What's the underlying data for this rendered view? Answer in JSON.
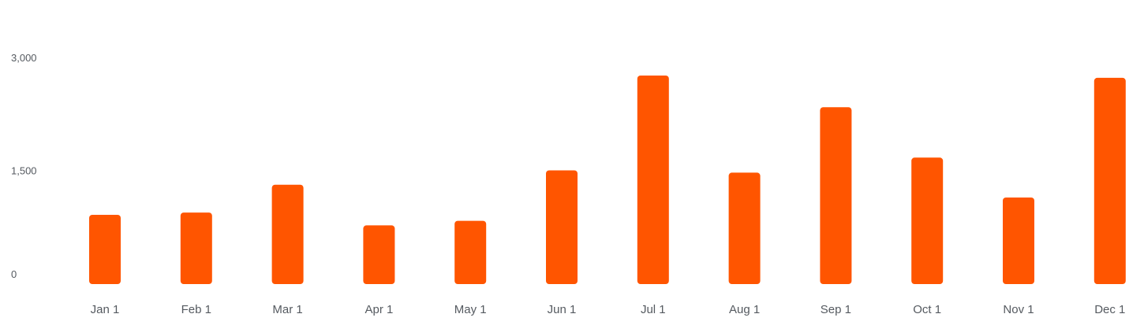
{
  "chart_data": {
    "type": "bar",
    "categories": [
      "Jan 1",
      "Feb 1",
      "Mar 1",
      "Apr 1",
      "May 1",
      "Jun 1",
      "Jul 1",
      "Aug 1",
      "Sep 1",
      "Oct 1",
      "Nov 1",
      "Dec 1"
    ],
    "values": [
      920,
      950,
      1320,
      780,
      840,
      1510,
      2770,
      1480,
      2350,
      1680,
      1150,
      2740
    ],
    "title": "",
    "xlabel": "",
    "ylabel": "",
    "ylim": [
      0,
      3000
    ],
    "yticks": [
      0,
      1500,
      3000
    ],
    "ytick_labels": [
      "0",
      "1,500",
      "3,000"
    ],
    "grid": false,
    "colors": {
      "bar": "#ff5500",
      "tick_text": "#555a60"
    }
  }
}
